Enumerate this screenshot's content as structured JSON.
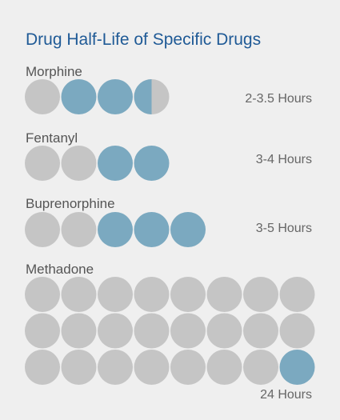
{
  "chart_data": {
    "type": "pictogram",
    "title": "Drug Half-Life of Specific Drugs",
    "colors": {
      "title": "#1f5a96",
      "label": "#555555",
      "value": "#666666",
      "filled": "#7ba9c0",
      "empty": "#c5c5c5"
    },
    "rows": [
      {
        "drug": "Morphine",
        "value_label": "2-3.5 Hours",
        "circles": [
          "empty",
          "filled",
          "filled",
          "half"
        ]
      },
      {
        "drug": "Fentanyl",
        "value_label": "3-4 Hours",
        "circles": [
          "empty",
          "empty",
          "filled",
          "filled"
        ]
      },
      {
        "drug": "Buprenorphine",
        "value_label": "3-5 Hours",
        "circles": [
          "empty",
          "empty",
          "filled",
          "filled",
          "filled"
        ]
      },
      {
        "drug": "Methadone",
        "value_label": "24 Hours",
        "circles": [
          "empty",
          "empty",
          "empty",
          "empty",
          "empty",
          "empty",
          "empty",
          "empty",
          "empty",
          "empty",
          "empty",
          "empty",
          "empty",
          "empty",
          "empty",
          "empty",
          "empty",
          "empty",
          "empty",
          "empty",
          "empty",
          "empty",
          "empty",
          "filled"
        ]
      }
    ]
  }
}
